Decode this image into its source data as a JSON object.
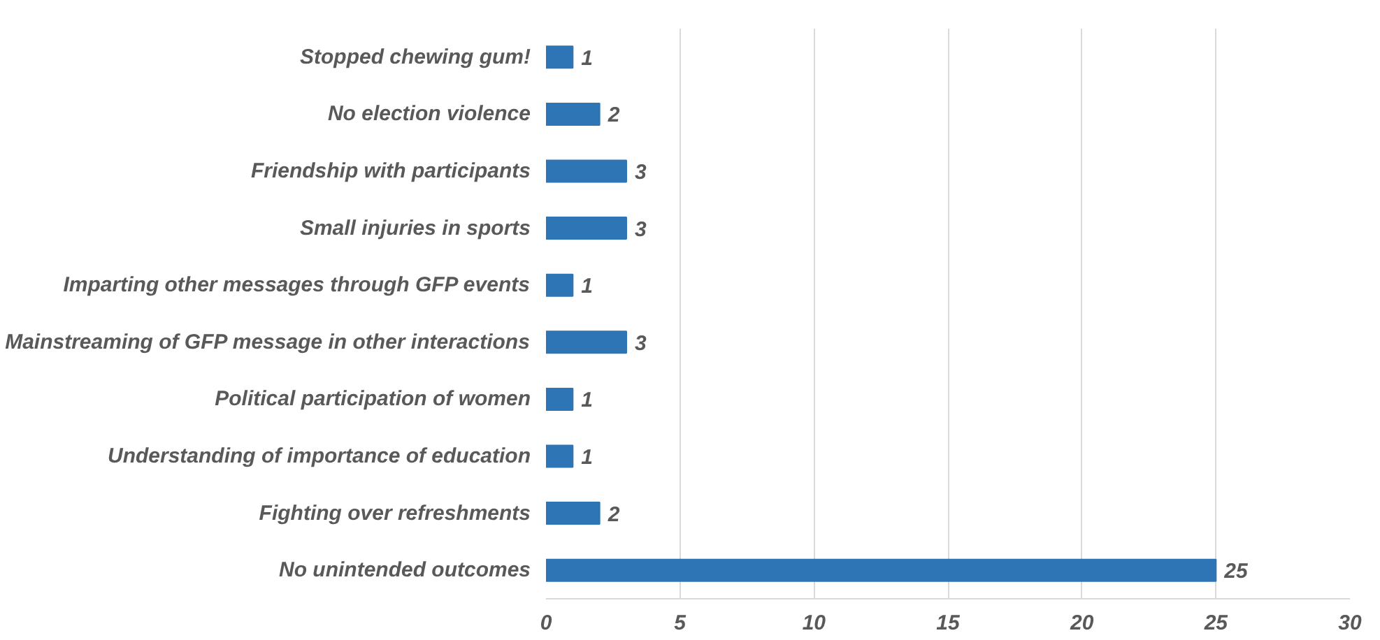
{
  "chart_data": {
    "type": "bar",
    "orientation": "horizontal",
    "categories": [
      "Stopped chewing gum!",
      "No election violence",
      "Friendship with participants",
      "Small injuries in sports",
      "Imparting other messages through GFP events",
      "Mainstreaming of GFP message in other interactions",
      "Political participation of women",
      "Understanding of importance of education",
      "Fighting over refreshments",
      "No unintended outcomes"
    ],
    "values": [
      1,
      2,
      3,
      3,
      1,
      3,
      1,
      1,
      2,
      25
    ],
    "color": "#2e75b6",
    "xlim": [
      0,
      30
    ],
    "xticks": [
      0,
      5,
      10,
      15,
      20,
      25,
      30
    ],
    "grid": "x",
    "data_labels": true
  }
}
